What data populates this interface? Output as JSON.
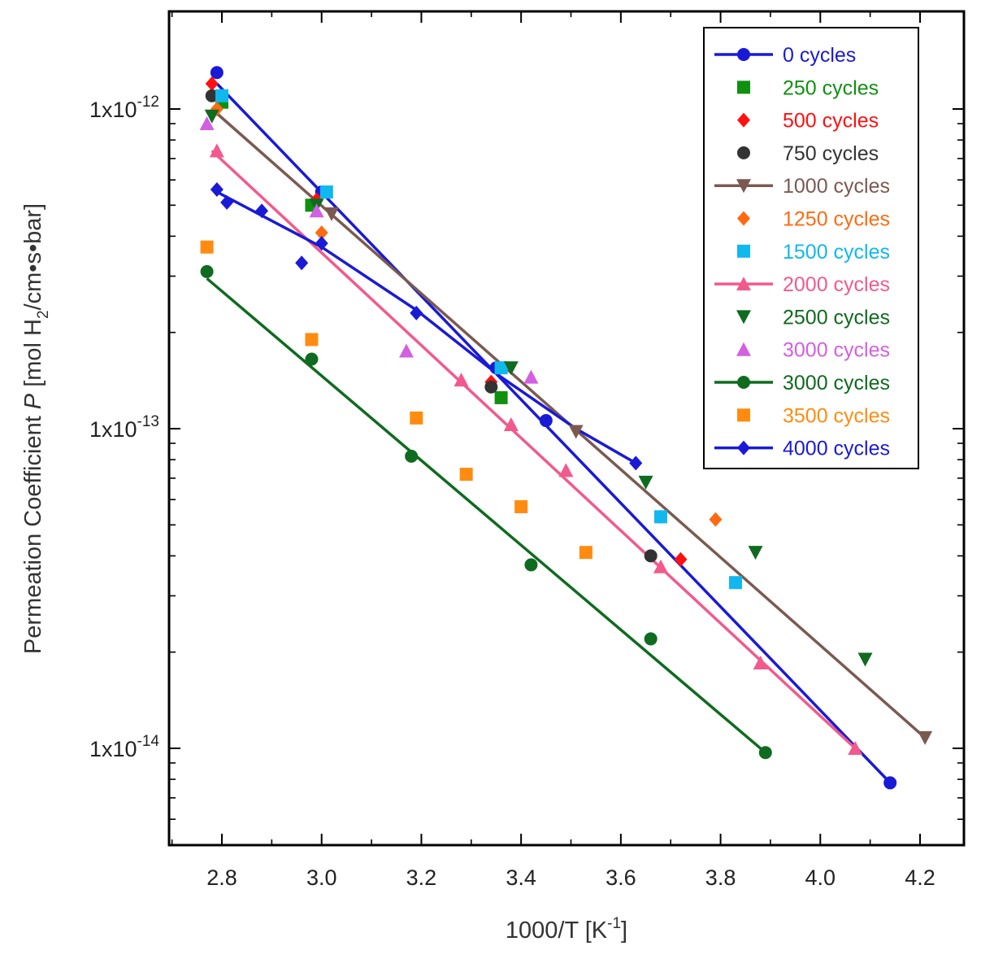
{
  "chart_data": {
    "type": "scatter",
    "title": "",
    "xlabel": "1000/T [K⁻¹]",
    "ylabel": "Permeation Coefficient P [mol H₂/cm•s•bar]",
    "ylabel_parts": {
      "pre": "Permeation Coefficient ",
      "var": "P",
      "unit_a": "[mol H",
      "unit_sub": "2",
      "unit_b": "/cm•s•bar]"
    },
    "xlabel_parts": {
      "pre": "1000/T  [K",
      "sup": "-1",
      "post": "]"
    },
    "xlim": [
      2.68,
      4.3
    ],
    "ylim_log": [
      5e-15,
      2.1e-12
    ],
    "y_scale": "log",
    "x_ticks": [
      "2.8",
      "3.0",
      "3.2",
      "3.4",
      "3.6",
      "3.8",
      "4.0",
      "4.2"
    ],
    "y_ticks": [
      {
        "value": 1e-12,
        "base": "1x10",
        "exp": "-12"
      },
      {
        "value": 1e-13,
        "base": "1x10",
        "exp": "-13"
      },
      {
        "value": 1e-14,
        "base": "1x10",
        "exp": "-14"
      }
    ],
    "legend_position": "top-right",
    "series": [
      {
        "name": "0 cycles",
        "color": "#1a1ad6",
        "marker": "circle",
        "line": true,
        "x": [
          2.79,
          3.0,
          3.35,
          3.45,
          3.68,
          4.14
        ],
        "y": [
          1.3e-12,
          5.5e-13,
          1.55e-13,
          1.06e-13,
          5.3e-14,
          7.8e-15
        ],
        "fit": [
          [
            2.79,
            1.2e-12
          ],
          [
            4.14,
            7.8e-15
          ]
        ]
      },
      {
        "name": "250 cycles",
        "color": "#109010",
        "marker": "square",
        "line": false,
        "x": [
          2.8,
          2.98,
          3.36
        ],
        "y": [
          1.05e-12,
          5e-13,
          1.25e-13
        ]
      },
      {
        "name": "500 cycles",
        "color": "#ff1010",
        "marker": "diamond",
        "line": false,
        "x": [
          2.78,
          2.99,
          3.34,
          3.72
        ],
        "y": [
          1.2e-12,
          5.2e-13,
          1.4e-13,
          3.9e-14
        ]
      },
      {
        "name": "750 cycles",
        "color": "#333333",
        "marker": "circle",
        "line": false,
        "x": [
          2.78,
          3.34,
          3.66
        ],
        "y": [
          1.1e-12,
          1.35e-13,
          4e-14
        ]
      },
      {
        "name": "1000 cycles",
        "color": "#7a5a50",
        "marker": "triangle-down",
        "line": true,
        "x": [
          3.02,
          3.51,
          4.21
        ],
        "y": [
          4.7e-13,
          9.8e-14,
          1.08e-14
        ],
        "fit": [
          [
            2.78,
            1e-12
          ],
          [
            4.21,
            1.08e-14
          ]
        ]
      },
      {
        "name": "1250 cycles",
        "color": "#ff6a10",
        "marker": "diamond",
        "line": false,
        "x": [
          2.79,
          3.0,
          3.79
        ],
        "y": [
          1e-12,
          4.1e-13,
          5.2e-14
        ]
      },
      {
        "name": "1500 cycles",
        "color": "#10b8ee",
        "marker": "square",
        "line": false,
        "x": [
          2.8,
          3.01,
          3.36,
          3.68,
          3.83
        ],
        "y": [
          1.1e-12,
          5.5e-13,
          1.55e-13,
          5.3e-14,
          3.3e-14
        ]
      },
      {
        "name": "2000 cycles",
        "color": "#f25a8c",
        "marker": "triangle-up",
        "line": true,
        "x": [
          2.79,
          3.28,
          3.38,
          3.49,
          3.68,
          3.88,
          4.07
        ],
        "y": [
          7.4e-13,
          1.42e-13,
          1.03e-13,
          7.4e-14,
          3.7e-14,
          1.85e-14,
          1e-14
        ],
        "fit": [
          [
            2.78,
            7.4e-13
          ],
          [
            4.07,
            1e-14
          ]
        ]
      },
      {
        "name": "2500 cycles",
        "color": "#0f6b1f",
        "marker": "triangle-down",
        "line": false,
        "x": [
          2.78,
          2.99,
          3.38,
          3.65,
          3.87,
          4.09
        ],
        "y": [
          9.5e-13,
          5e-13,
          1.55e-13,
          6.8e-14,
          4.1e-14,
          1.9e-14
        ]
      },
      {
        "name": "3000 cycles",
        "color": "#d260e0",
        "marker": "triangle-up",
        "line": false,
        "x": [
          2.77,
          2.99,
          3.17,
          3.42
        ],
        "y": [
          9e-13,
          4.8e-13,
          1.75e-13,
          1.45e-13
        ]
      },
      {
        "name": "3000 cycles",
        "color": "#0f6b1f",
        "marker": "circle",
        "line": true,
        "x": [
          2.77,
          2.98,
          3.18,
          3.42,
          3.66,
          3.89
        ],
        "y": [
          3.1e-13,
          1.65e-13,
          8.2e-14,
          3.75e-14,
          2.2e-14,
          9.7e-15
        ],
        "fit": [
          [
            2.77,
            2.95e-13
          ],
          [
            3.89,
            9.7e-15
          ]
        ]
      },
      {
        "name": "3500 cycles",
        "color": "#ff8c10",
        "marker": "square",
        "line": false,
        "x": [
          2.77,
          2.98,
          3.19,
          3.29,
          3.4,
          3.53
        ],
        "y": [
          3.7e-13,
          1.9e-13,
          1.08e-13,
          7.2e-14,
          5.7e-14,
          4.1e-14
        ]
      },
      {
        "name": "4000 cycles",
        "color": "#1a1ad6",
        "marker": "diamond",
        "line": true,
        "x": [
          2.79,
          2.81,
          2.88,
          2.96,
          3.0,
          3.19,
          3.63
        ],
        "y": [
          5.6e-13,
          5.1e-13,
          4.8e-13,
          3.3e-13,
          3.8e-13,
          2.3e-13,
          7.8e-14
        ],
        "fit": [
          [
            2.79,
            5.5e-13
          ],
          [
            3.0,
            3.7e-13
          ],
          [
            3.19,
            2.35e-13
          ],
          [
            3.36,
            1.45e-13
          ],
          [
            3.51,
            1e-13
          ],
          [
            3.63,
            7.8e-14
          ]
        ]
      }
    ]
  }
}
